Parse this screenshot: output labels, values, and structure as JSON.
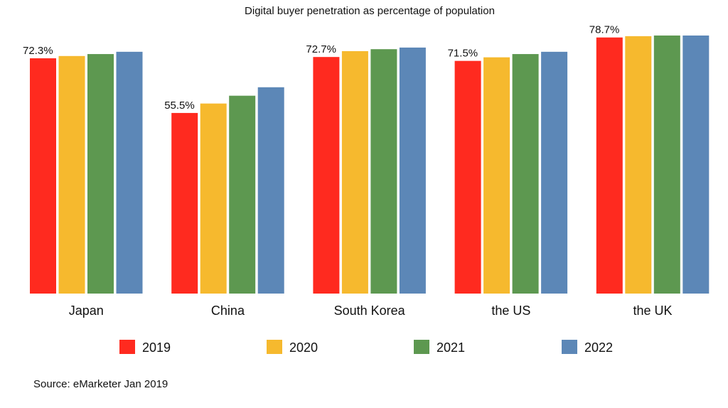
{
  "chart_data": {
    "type": "bar",
    "title": "Digital buyer penetration as percentage of population",
    "source": "Source: eMarketer Jan 2019",
    "categories": [
      "Japan",
      "China",
      "South Korea",
      "the US",
      "the UK"
    ],
    "ylim": [
      0,
      90
    ],
    "grid": false,
    "legend_position": "bottom",
    "series": [
      {
        "name": "2019",
        "color": "#ff2a1f",
        "values": [
          72.3,
          55.5,
          72.7,
          71.5,
          78.7
        ],
        "labels": [
          "72.3%",
          "55.5%",
          "72.7%",
          "71.5%",
          "78.7%"
        ]
      },
      {
        "name": "2020",
        "color": "#f6b92e",
        "values": [
          73.0,
          58.4,
          74.5,
          72.6,
          79.1
        ]
      },
      {
        "name": "2021",
        "color": "#5d9850",
        "values": [
          73.6,
          60.8,
          75.1,
          73.6,
          79.3
        ]
      },
      {
        "name": "2022",
        "color": "#5c87b7",
        "values": [
          74.3,
          63.4,
          75.6,
          74.3,
          79.3
        ]
      }
    ]
  }
}
